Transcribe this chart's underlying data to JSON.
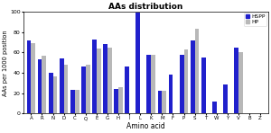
{
  "categories": [
    "A",
    "R",
    "N",
    "D",
    "C",
    "Q",
    "E",
    "G",
    "H",
    "I",
    "L",
    "K",
    "M",
    "F",
    "P",
    "S",
    "T",
    "W",
    "Y",
    "V",
    "B",
    "Z"
  ],
  "HSPP": [
    72,
    53,
    40,
    54,
    23,
    46,
    73,
    68,
    24,
    46,
    99,
    58,
    22,
    38,
    58,
    72,
    55,
    12,
    29,
    65,
    0,
    0
  ],
  "HP": [
    69,
    57,
    37,
    48,
    23,
    48,
    64,
    65,
    26,
    0,
    0,
    58,
    22,
    0,
    63,
    83,
    0,
    0,
    0,
    60,
    0,
    0
  ],
  "HSPP_color": "#2020cc",
  "HP_color": "#b8b8b8",
  "title": "AAs distribution",
  "xlabel": "Amino acid",
  "ylabel": "AAs per 1000 position",
  "ylim": [
    0,
    100
  ],
  "yticks": [
    0,
    20,
    40,
    60,
    80,
    100
  ],
  "bar_width": 0.4,
  "legend_labels": [
    "HSPP",
    "HP"
  ],
  "figsize": [
    3.0,
    1.48
  ],
  "dpi": 100
}
